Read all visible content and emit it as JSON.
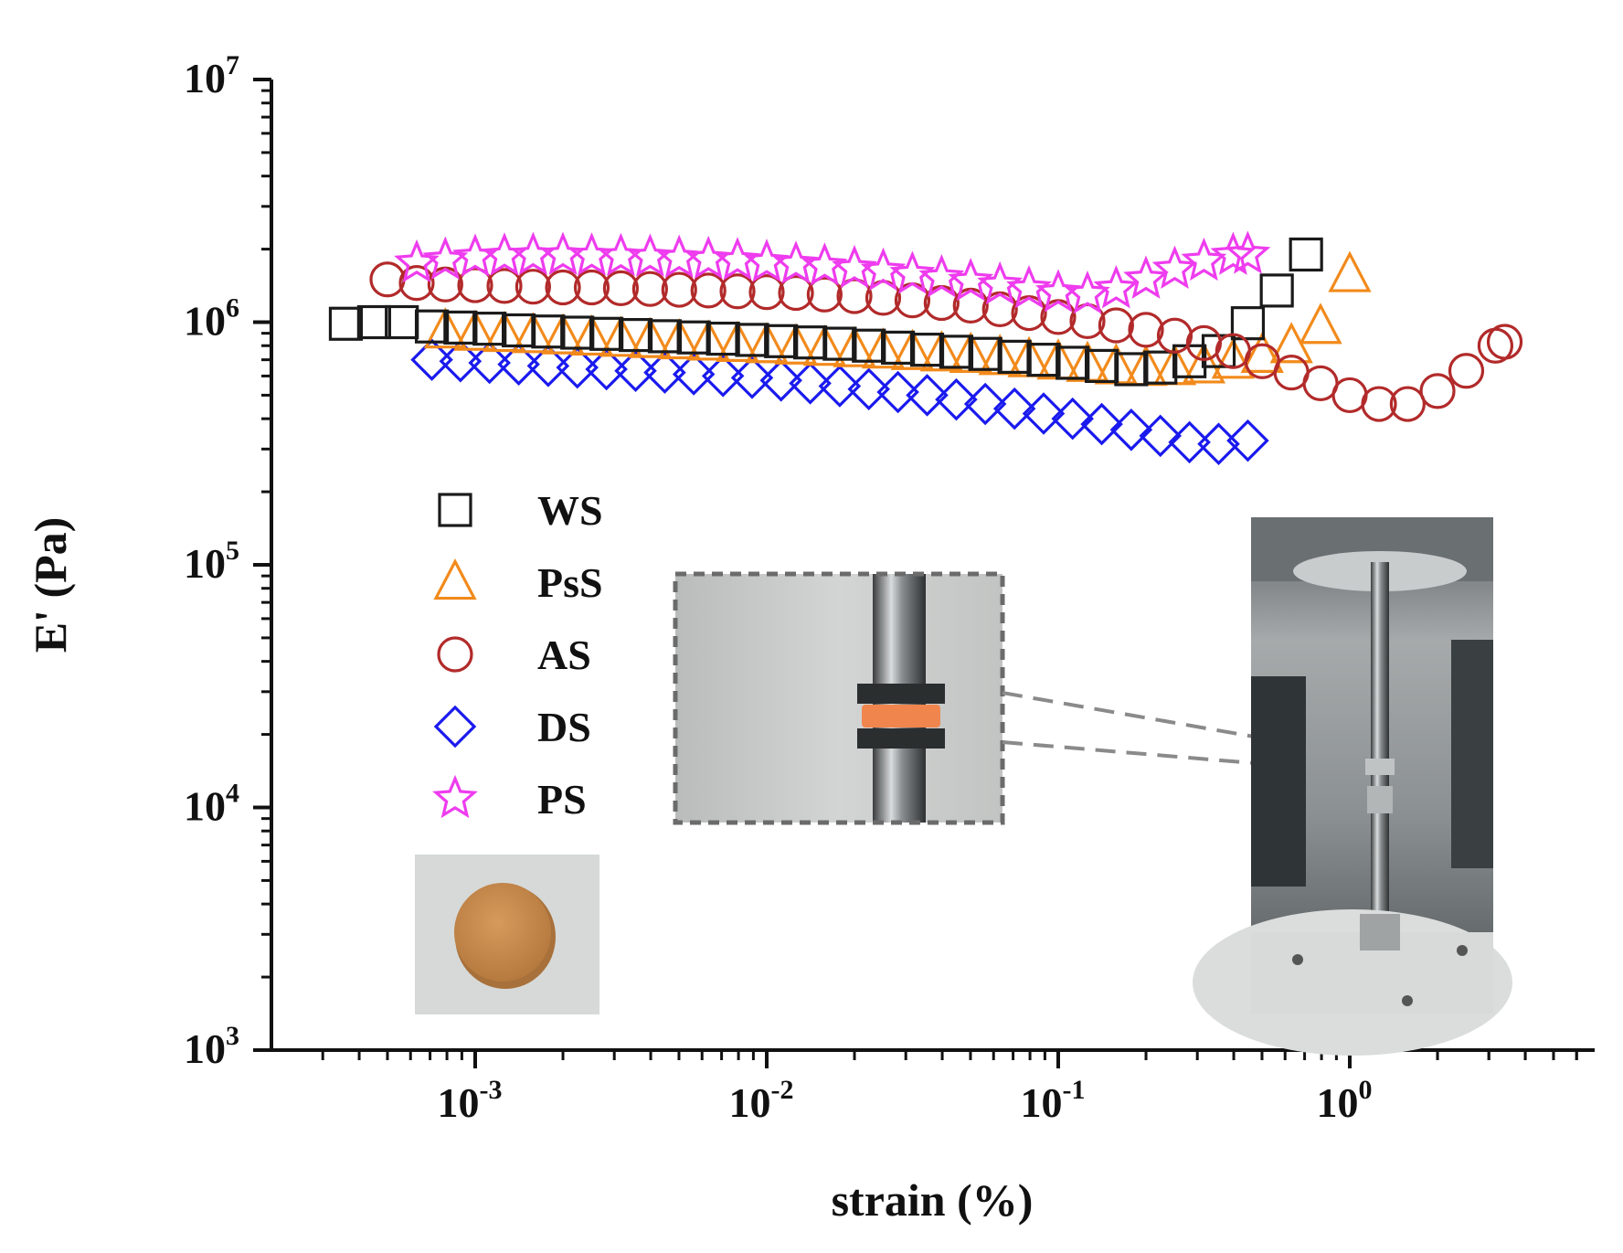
{
  "chart_data": {
    "type": "scatter",
    "xscale": "log",
    "yscale": "log",
    "xlabel": "strain (%)",
    "ylabel": "E' (Pa)",
    "xlim": [
      0.0002,
      7
    ],
    "ylim": [
      1000,
      10000000
    ],
    "x_tick_labels": [
      {
        "base": "10",
        "exp": "-3",
        "value": 0.001
      },
      {
        "base": "10",
        "exp": "-2",
        "value": 0.01
      },
      {
        "base": "10",
        "exp": "-1",
        "value": 0.1
      },
      {
        "base": "10",
        "exp": "0",
        "value": 1
      }
    ],
    "y_tick_labels": [
      {
        "base": "10",
        "exp": "3",
        "value": 1000
      },
      {
        "base": "10",
        "exp": "4",
        "value": 10000
      },
      {
        "base": "10",
        "exp": "5",
        "value": 100000
      },
      {
        "base": "10",
        "exp": "6",
        "value": 1000000
      },
      {
        "base": "10",
        "exp": "7",
        "value": 10000000
      }
    ],
    "grid": false,
    "legend_position": "middle-left",
    "series": [
      {
        "name": "WS",
        "marker": "square",
        "color": "#1a1a1a",
        "points": [
          [
            0.00036,
            985000
          ],
          [
            0.00045,
            1000000
          ],
          [
            0.00056,
            1000000
          ],
          [
            0.00071,
            960000
          ],
          [
            0.00089,
            950000
          ],
          [
            0.00112,
            940000
          ],
          [
            0.00141,
            925000
          ],
          [
            0.00178,
            915000
          ],
          [
            0.00224,
            905000
          ],
          [
            0.00282,
            895000
          ],
          [
            0.00355,
            885000
          ],
          [
            0.00447,
            875000
          ],
          [
            0.00562,
            865000
          ],
          [
            0.00708,
            855000
          ],
          [
            0.00891,
            845000
          ],
          [
            0.0112,
            835000
          ],
          [
            0.0141,
            825000
          ],
          [
            0.0178,
            815000
          ],
          [
            0.0224,
            800000
          ],
          [
            0.0282,
            785000
          ],
          [
            0.0355,
            770000
          ],
          [
            0.0447,
            755000
          ],
          [
            0.0562,
            740000
          ],
          [
            0.0708,
            720000
          ],
          [
            0.0891,
            700000
          ],
          [
            0.112,
            680000
          ],
          [
            0.141,
            660000
          ],
          [
            0.178,
            640000
          ],
          [
            0.224,
            650000
          ],
          [
            0.282,
            690000
          ],
          [
            0.355,
            760000
          ],
          [
            0.447,
            990000
          ],
          [
            0.562,
            1350000
          ],
          [
            0.708,
            1900000
          ]
        ]
      },
      {
        "name": "PsS",
        "marker": "triangle",
        "color": "#f28a1b",
        "points": [
          [
            0.00079,
            920000
          ],
          [
            0.001,
            900000
          ],
          [
            0.00126,
            890000
          ],
          [
            0.00158,
            880000
          ],
          [
            0.002,
            870000
          ],
          [
            0.00251,
            860000
          ],
          [
            0.00316,
            850000
          ],
          [
            0.00398,
            840000
          ],
          [
            0.00501,
            830000
          ],
          [
            0.00631,
            820000
          ],
          [
            0.00794,
            810000
          ],
          [
            0.01,
            800000
          ],
          [
            0.0126,
            790000
          ],
          [
            0.0158,
            780000
          ],
          [
            0.02,
            770000
          ],
          [
            0.0251,
            760000
          ],
          [
            0.0316,
            750000
          ],
          [
            0.0398,
            740000
          ],
          [
            0.0501,
            730000
          ],
          [
            0.0631,
            715000
          ],
          [
            0.0794,
            700000
          ],
          [
            0.1,
            685000
          ],
          [
            0.126,
            670000
          ],
          [
            0.158,
            655000
          ],
          [
            0.2,
            645000
          ],
          [
            0.251,
            650000
          ],
          [
            0.316,
            660000
          ],
          [
            0.398,
            690000
          ],
          [
            0.501,
            730000
          ],
          [
            0.631,
            800000
          ],
          [
            0.794,
            960000
          ],
          [
            1.0,
            1570000
          ]
        ]
      },
      {
        "name": "AS",
        "marker": "circle",
        "color": "#b22a2a",
        "points": [
          [
            0.0005,
            1500000
          ],
          [
            0.00063,
            1450000
          ],
          [
            0.00079,
            1430000
          ],
          [
            0.001,
            1420000
          ],
          [
            0.00126,
            1410000
          ],
          [
            0.00158,
            1400000
          ],
          [
            0.002,
            1390000
          ],
          [
            0.00251,
            1390000
          ],
          [
            0.00316,
            1380000
          ],
          [
            0.00398,
            1370000
          ],
          [
            0.00501,
            1360000
          ],
          [
            0.00631,
            1350000
          ],
          [
            0.00794,
            1340000
          ],
          [
            0.01,
            1330000
          ],
          [
            0.0126,
            1320000
          ],
          [
            0.0158,
            1300000
          ],
          [
            0.02,
            1280000
          ],
          [
            0.0251,
            1260000
          ],
          [
            0.0316,
            1230000
          ],
          [
            0.0398,
            1200000
          ],
          [
            0.0501,
            1170000
          ],
          [
            0.0631,
            1130000
          ],
          [
            0.0794,
            1090000
          ],
          [
            0.1,
            1050000
          ],
          [
            0.126,
            1010000
          ],
          [
            0.158,
            970000
          ],
          [
            0.2,
            930000
          ],
          [
            0.251,
            880000
          ],
          [
            0.316,
            820000
          ],
          [
            0.398,
            760000
          ],
          [
            0.501,
            690000
          ],
          [
            0.631,
            620000
          ],
          [
            0.794,
            560000
          ],
          [
            1.0,
            500000
          ],
          [
            1.26,
            460000
          ],
          [
            1.58,
            460000
          ],
          [
            2.0,
            520000
          ],
          [
            2.51,
            630000
          ],
          [
            3.16,
            800000
          ],
          [
            3.4,
            830000
          ]
        ]
      },
      {
        "name": "DS",
        "marker": "diamond",
        "color": "#1a1aee",
        "points": [
          [
            0.00071,
            700000
          ],
          [
            0.00089,
            690000
          ],
          [
            0.00112,
            680000
          ],
          [
            0.00141,
            670000
          ],
          [
            0.00178,
            660000
          ],
          [
            0.00224,
            650000
          ],
          [
            0.00282,
            640000
          ],
          [
            0.00355,
            630000
          ],
          [
            0.00447,
            620000
          ],
          [
            0.00562,
            610000
          ],
          [
            0.00708,
            600000
          ],
          [
            0.00891,
            590000
          ],
          [
            0.0112,
            575000
          ],
          [
            0.0141,
            560000
          ],
          [
            0.0178,
            545000
          ],
          [
            0.0224,
            530000
          ],
          [
            0.0282,
            515000
          ],
          [
            0.0355,
            500000
          ],
          [
            0.0447,
            480000
          ],
          [
            0.0562,
            460000
          ],
          [
            0.0708,
            440000
          ],
          [
            0.0891,
            420000
          ],
          [
            0.112,
            400000
          ],
          [
            0.141,
            380000
          ],
          [
            0.178,
            360000
          ],
          [
            0.224,
            340000
          ],
          [
            0.282,
            320000
          ],
          [
            0.355,
            315000
          ],
          [
            0.447,
            325000
          ]
        ]
      },
      {
        "name": "PS",
        "marker": "star",
        "color": "#ee3cee",
        "points": [
          [
            0.00063,
            1750000
          ],
          [
            0.00079,
            1800000
          ],
          [
            0.001,
            1850000
          ],
          [
            0.00126,
            1870000
          ],
          [
            0.00158,
            1880000
          ],
          [
            0.002,
            1880000
          ],
          [
            0.00251,
            1870000
          ],
          [
            0.00316,
            1860000
          ],
          [
            0.00398,
            1850000
          ],
          [
            0.00501,
            1830000
          ],
          [
            0.00631,
            1810000
          ],
          [
            0.00794,
            1790000
          ],
          [
            0.01,
            1760000
          ],
          [
            0.0126,
            1730000
          ],
          [
            0.0158,
            1700000
          ],
          [
            0.02,
            1660000
          ],
          [
            0.0251,
            1620000
          ],
          [
            0.0316,
            1570000
          ],
          [
            0.0398,
            1520000
          ],
          [
            0.0501,
            1470000
          ],
          [
            0.0631,
            1420000
          ],
          [
            0.0794,
            1370000
          ],
          [
            0.1,
            1320000
          ],
          [
            0.126,
            1300000
          ],
          [
            0.158,
            1370000
          ],
          [
            0.2,
            1500000
          ],
          [
            0.251,
            1650000
          ],
          [
            0.316,
            1780000
          ],
          [
            0.398,
            1880000
          ],
          [
            0.447,
            1900000
          ]
        ]
      }
    ]
  },
  "insets": [
    {
      "name": "pellet-photo",
      "description_colors": {
        "background": "#d4d7d6",
        "pellet": "#c98a4b"
      }
    },
    {
      "name": "gap-closeup-photo",
      "description_colors": {
        "background": "#bfc2c1",
        "sample": "#f08a52"
      }
    },
    {
      "name": "rheometer-photo",
      "description_colors": {
        "background": "#8e9392"
      }
    }
  ]
}
